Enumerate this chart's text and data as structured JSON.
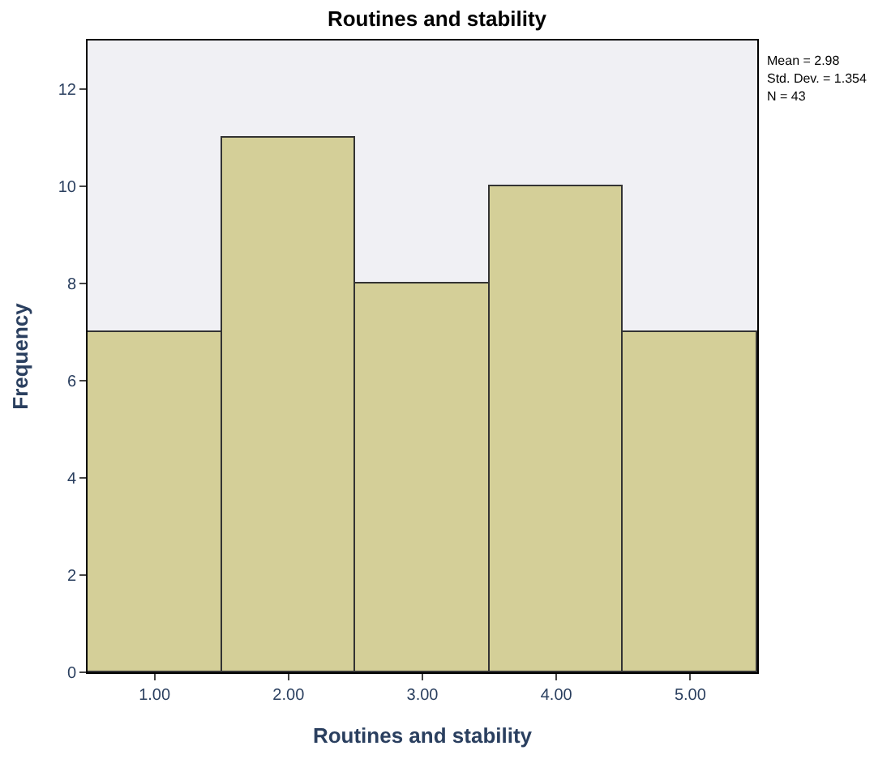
{
  "chart_data": {
    "type": "histogram",
    "title": "Routines and stability",
    "xlabel": "Routines and stability",
    "ylabel": "Frequency",
    "bins": [
      0.5,
      1.5,
      2.5,
      3.5,
      4.5,
      5.5
    ],
    "values": [
      7,
      11,
      8,
      10,
      7
    ],
    "color": "#d4cf98",
    "xlim": [
      0.5,
      5.5
    ],
    "xticks": [
      {
        "value": 1,
        "label": "1.00"
      },
      {
        "value": 2,
        "label": "2.00"
      },
      {
        "value": 3,
        "label": "3.00"
      },
      {
        "value": 4,
        "label": "4.00"
      },
      {
        "value": 5,
        "label": "5.00"
      }
    ],
    "ylim": [
      0,
      13
    ],
    "yticks": [
      0,
      2,
      4,
      6,
      8,
      10,
      12
    ],
    "grid": false,
    "annotations": [
      "Mean = 2.98",
      "Std. Dev. = 1.354",
      "N = 43"
    ]
  }
}
